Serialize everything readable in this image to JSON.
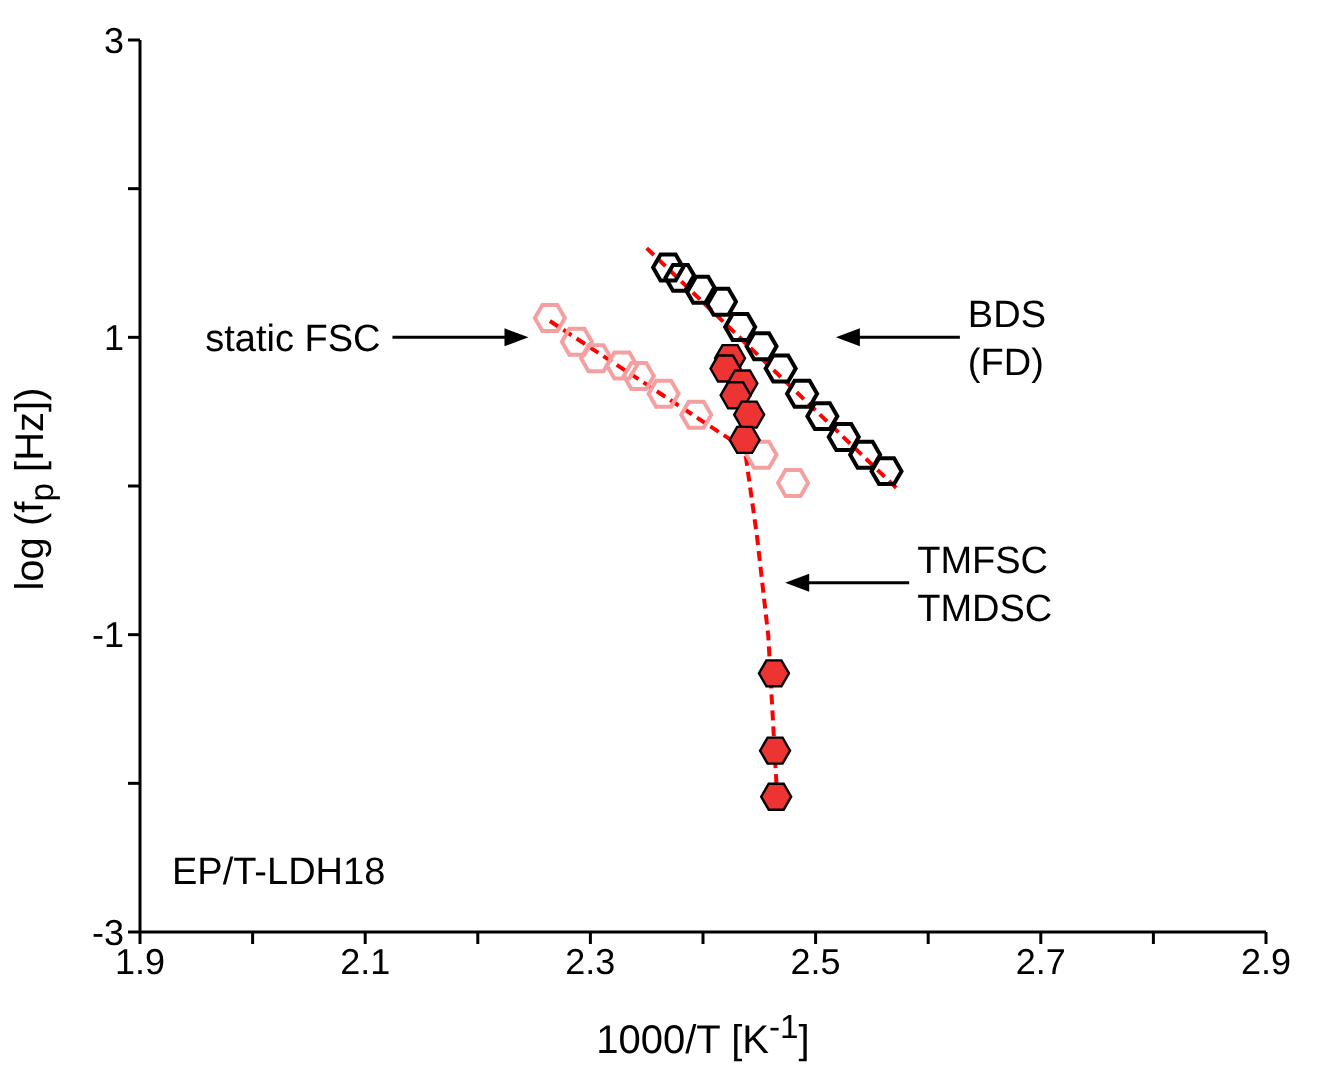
{
  "chart_data": {
    "type": "scatter",
    "xlabel": "1000/T [K$^{-1}$]",
    "ylabel": "log (f$_{p}$ [Hz])",
    "xlim": [
      1.9,
      2.9
    ],
    "xticks": [
      1.9,
      {
        "value": 2.0,
        "label": null
      },
      2.1,
      {
        "value": 2.2,
        "label": null
      },
      2.3,
      {
        "value": 2.4,
        "label": null
      },
      2.5,
      {
        "value": 2.6,
        "label": null
      },
      2.7,
      {
        "value": 2.8,
        "label": null
      },
      2.9
    ],
    "ylim": [
      -3,
      3
    ],
    "yticks": [
      -3,
      {
        "value": -2,
        "label": null
      },
      -1,
      {
        "value": 0,
        "label": null
      },
      1,
      {
        "value": 2,
        "label": null
      },
      3
    ],
    "series": [
      {
        "type": "line",
        "color": "#ff0000",
        "line_style": "dashed",
        "x": [
          2.35,
          2.574
        ],
        "values": [
          1.6,
          -0.03
        ]
      },
      {
        "type": "line",
        "color": "#ff0000",
        "line_style": "dashed",
        "x": [
          2.264,
          2.441
        ],
        "values": [
          1.11,
          0.23
        ]
      },
      {
        "type": "line",
        "color": "#ff0000",
        "line_style": "dashed",
        "x": [
          2.424,
          2.438,
          2.448,
          2.458,
          2.466
        ],
        "values": [
          0.84,
          0.2,
          -0.34,
          -1.01,
          -2.11
        ]
      },
      {
        "color": "#000000",
        "x": [
          2.369,
          2.38,
          2.398,
          2.416,
          2.433,
          2.452,
          2.469,
          2.488,
          2.506,
          2.525,
          2.544,
          2.563
        ],
        "values": [
          1.47,
          1.4,
          1.32,
          1.24,
          1.07,
          0.94,
          0.79,
          0.62,
          0.47,
          0.33,
          0.21,
          0.1
        ]
      },
      {
        "color": "#f4a0a0",
        "x": [
          2.264,
          2.288,
          2.305,
          2.328,
          2.343,
          2.365,
          2.394,
          2.452,
          2.48
        ],
        "values": [
          1.13,
          0.97,
          0.86,
          0.81,
          0.74,
          0.62,
          0.48,
          0.21,
          0.02
        ]
      },
      {
        "color": "#ee3333",
        "x": [
          2.424,
          2.42,
          2.435,
          2.429,
          2.441,
          2.437,
          2.463,
          2.464,
          2.465
        ],
        "values": [
          0.86,
          0.79,
          0.69,
          0.61,
          0.48,
          0.31,
          -1.26,
          -1.78,
          -2.09
        ]
      }
    ],
    "annotations": [
      "static FSC",
      "BDS\n(FD)",
      "TMFSC\nTMDSC",
      "EP/T-LDH18"
    ]
  }
}
